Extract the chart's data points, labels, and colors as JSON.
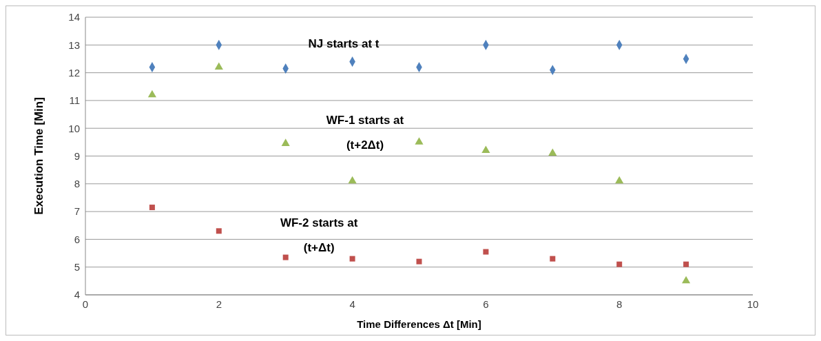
{
  "chart_data": {
    "type": "scatter",
    "xlabel": "Time Differences  Δt [Min]",
    "ylabel": "Execution Time [Min]",
    "xlim": [
      0,
      10
    ],
    "xticks": [
      0,
      2,
      4,
      6,
      8,
      10
    ],
    "ylim": [
      4,
      14
    ],
    "yticks": [
      4,
      5,
      6,
      7,
      8,
      9,
      10,
      11,
      12,
      13,
      14
    ],
    "grid": "y",
    "x": [
      1,
      2,
      3,
      4,
      5,
      6,
      7,
      8,
      9
    ],
    "series": [
      {
        "color": "#4f81bd",
        "marker": "diamond",
        "values": [
          12.2,
          13.0,
          12.15,
          12.4,
          12.2,
          13.0,
          12.1,
          13.0,
          12.5
        ]
      },
      {
        "color": "#c0504d",
        "marker": "square",
        "values": [
          7.15,
          6.3,
          5.35,
          5.3,
          5.2,
          5.55,
          5.3,
          5.1,
          5.1
        ]
      },
      {
        "color": "#9bbb59",
        "marker": "triangle",
        "values": [
          11.2,
          12.2,
          9.45,
          8.1,
          9.5,
          9.2,
          9.1,
          8.1,
          4.5
        ]
      }
    ],
    "annotations": [
      "NJ starts at t",
      "WF-1 starts at\n(t+2Δt)",
      "WF-2 starts at\n(t+Δt)"
    ]
  }
}
